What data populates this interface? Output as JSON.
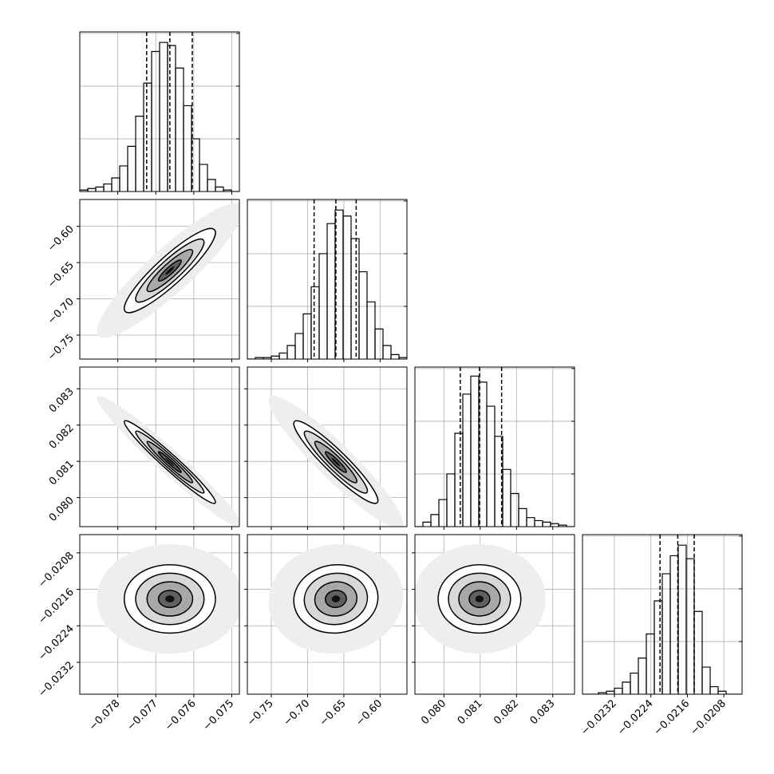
{
  "chart_data": {
    "type": "corner",
    "grid": true,
    "hist_ylim": [
      0,
      106
    ],
    "hist_yticks": [
      0,
      35,
      70,
      105
    ],
    "params": [
      {
        "lim": [
          -0.079,
          -0.0748
        ],
        "quantiles": [
          -0.07724,
          -0.07663,
          -0.07604
        ],
        "ticks": [
          {
            "value": -0.078,
            "label": "−0.078"
          },
          {
            "value": -0.077,
            "label": "−0.077"
          },
          {
            "value": -0.076,
            "label": "−0.076"
          },
          {
            "value": -0.075,
            "label": "−0.075"
          }
        ],
        "bins": [
          -0.079,
          -0.07879,
          -0.07858,
          -0.07837,
          -0.07816,
          -0.07795,
          -0.07774,
          -0.07753,
          -0.07732,
          -0.07711,
          -0.0769,
          -0.07669,
          -0.07648,
          -0.07627,
          -0.07606,
          -0.07585,
          -0.07564,
          -0.07543,
          -0.07522,
          -0.07501,
          -0.0748
        ],
        "counts": [
          1,
          2,
          3,
          5,
          9,
          17,
          30,
          50,
          72,
          93,
          99,
          97,
          82,
          57,
          35,
          18,
          8,
          3,
          1,
          0
        ]
      },
      {
        "lim": [
          -0.783,
          -0.563
        ],
        "quantiles": [
          -0.691,
          -0.661,
          -0.633
        ],
        "ticks": [
          {
            "value": -0.75,
            "label": "−0.75"
          },
          {
            "value": -0.7,
            "label": "−0.70"
          },
          {
            "value": -0.65,
            "label": "−0.65"
          },
          {
            "value": -0.6,
            "label": "−0.60"
          }
        ],
        "bins": [
          -0.783,
          -0.772,
          -0.761,
          -0.75,
          -0.739,
          -0.728,
          -0.717,
          -0.706,
          -0.695,
          -0.684,
          -0.673,
          -0.662,
          -0.651,
          -0.64,
          -0.629,
          -0.618,
          -0.607,
          -0.596,
          -0.585,
          -0.574,
          -0.563
        ],
        "counts": [
          0,
          1,
          1,
          2,
          4,
          9,
          17,
          30,
          48,
          70,
          90,
          99,
          95,
          80,
          58,
          38,
          20,
          9,
          3,
          1
        ]
      },
      {
        "lim": [
          0.0792,
          0.0836
        ],
        "quantiles": [
          0.08045,
          0.08098,
          0.08159
        ],
        "ticks": [
          {
            "value": 0.08,
            "label": "0.080"
          },
          {
            "value": 0.081,
            "label": "0.081"
          },
          {
            "value": 0.082,
            "label": "0.082"
          },
          {
            "value": 0.083,
            "label": "0.083"
          }
        ],
        "bins": [
          0.0792,
          0.07942,
          0.07964,
          0.07986,
          0.08008,
          0.0803,
          0.08052,
          0.08074,
          0.08096,
          0.08118,
          0.0814,
          0.08162,
          0.08184,
          0.08206,
          0.08228,
          0.0825,
          0.08272,
          0.08294,
          0.08316,
          0.08338,
          0.0836
        ],
        "counts": [
          0,
          3,
          8,
          18,
          35,
          62,
          88,
          100,
          96,
          80,
          60,
          38,
          22,
          12,
          6,
          4,
          3,
          2,
          1,
          0
        ]
      },
      {
        "lim": [
          -0.0239,
          -0.0204
        ],
        "quantiles": [
          -0.0222,
          -0.02181,
          -0.02145
        ],
        "ticks": [
          {
            "value": -0.0232,
            "label": "−0.0232"
          },
          {
            "value": -0.0224,
            "label": "−0.0224"
          },
          {
            "value": -0.0216,
            "label": "−0.0216"
          },
          {
            "value": -0.0208,
            "label": "−0.0208"
          }
        ],
        "bins": [
          -0.0239,
          -0.023725,
          -0.02355,
          -0.023375,
          -0.0232,
          -0.023025,
          -0.02285,
          -0.022675,
          -0.0225,
          -0.022325,
          -0.02215,
          -0.021975,
          -0.0218,
          -0.021625,
          -0.02145,
          -0.021275,
          -0.0211,
          -0.020925,
          -0.02075,
          -0.020575,
          -0.0204
        ],
        "counts": [
          0,
          0,
          1,
          2,
          4,
          8,
          14,
          24,
          40,
          62,
          80,
          92,
          99,
          90,
          55,
          18,
          5,
          2,
          0,
          0
        ]
      }
    ],
    "correlations": [
      {
        "x": 0,
        "y": 1,
        "corr": 0.9
      },
      {
        "x": 0,
        "y": 2,
        "corr": -0.97
      },
      {
        "x": 1,
        "y": 2,
        "corr": -0.93
      },
      {
        "x": 0,
        "y": 3,
        "corr": 0.0
      },
      {
        "x": 1,
        "y": 3,
        "corr": 0.05
      },
      {
        "x": 2,
        "y": 3,
        "corr": 0.0
      }
    ]
  }
}
